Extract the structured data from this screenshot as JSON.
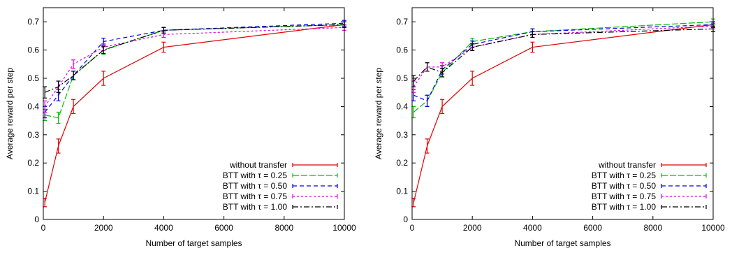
{
  "chart_data": [
    {
      "type": "line",
      "xlabel": "Number of target samples",
      "ylabel": "Average reward per step",
      "xlim": [
        0,
        10000
      ],
      "ylim": [
        0,
        0.75
      ],
      "xticks": [
        0,
        2000,
        4000,
        6000,
        8000,
        10000
      ],
      "yticks": [
        0,
        0.1,
        0.2,
        0.3,
        0.4,
        0.5,
        0.6,
        0.7
      ],
      "grid": false,
      "legend_position": "bottom-right",
      "x": [
        50,
        500,
        1000,
        2000,
        4000,
        10000
      ],
      "series": [
        {
          "name": "without transfer",
          "color": "#e00000",
          "dash": "solid",
          "values": [
            0.06,
            0.26,
            0.4,
            0.5,
            0.61,
            0.69
          ],
          "errors": [
            0.015,
            0.025,
            0.025,
            0.025,
            0.018,
            0.01
          ]
        },
        {
          "name": "BTT with τ = 0.25",
          "color": "#00c000",
          "dash": "longdash",
          "values": [
            0.37,
            0.36,
            0.51,
            0.6,
            0.67,
            0.69
          ],
          "errors": [
            0.02,
            0.02,
            0.015,
            0.015,
            0.01,
            0.01
          ]
        },
        {
          "name": "BTT with τ = 0.50",
          "color": "#0000e0",
          "dash": "dash",
          "values": [
            0.38,
            0.44,
            0.51,
            0.63,
            0.67,
            0.695
          ],
          "errors": [
            0.02,
            0.02,
            0.015,
            0.012,
            0.01,
            0.01
          ]
        },
        {
          "name": "BTT with τ = 0.75",
          "color": "#e000e0",
          "dash": "shortdash",
          "values": [
            0.4,
            0.47,
            0.55,
            0.61,
            0.655,
            0.68
          ],
          "errors": [
            0.02,
            0.02,
            0.015,
            0.012,
            0.01,
            0.01
          ]
        },
        {
          "name": "BTT with τ = 1.00",
          "color": "#000000",
          "dash": "dashdot",
          "values": [
            0.45,
            0.47,
            0.51,
            0.6,
            0.67,
            0.69
          ],
          "errors": [
            0.02,
            0.02,
            0.015,
            0.012,
            0.01,
            0.01
          ]
        }
      ]
    },
    {
      "type": "line",
      "xlabel": "Number of target samples",
      "ylabel": "Average reward per step",
      "xlim": [
        0,
        10000
      ],
      "ylim": [
        0,
        0.75
      ],
      "xticks": [
        0,
        2000,
        4000,
        6000,
        8000,
        10000
      ],
      "yticks": [
        0,
        0.1,
        0.2,
        0.3,
        0.4,
        0.5,
        0.6,
        0.7
      ],
      "grid": false,
      "legend_position": "bottom-right",
      "x": [
        50,
        500,
        1000,
        2000,
        4000,
        10000
      ],
      "series": [
        {
          "name": "without transfer",
          "color": "#e00000",
          "dash": "solid",
          "values": [
            0.06,
            0.26,
            0.4,
            0.5,
            0.61,
            0.69
          ],
          "errors": [
            0.015,
            0.025,
            0.025,
            0.025,
            0.018,
            0.01
          ]
        },
        {
          "name": "BTT with τ = 0.25",
          "color": "#00c000",
          "dash": "longdash",
          "values": [
            0.38,
            0.42,
            0.52,
            0.63,
            0.665,
            0.7
          ],
          "errors": [
            0.02,
            0.02,
            0.015,
            0.012,
            0.01,
            0.01
          ]
        },
        {
          "name": "BTT with τ = 0.50",
          "color": "#0000e0",
          "dash": "dash",
          "values": [
            0.44,
            0.42,
            0.53,
            0.62,
            0.665,
            0.69
          ],
          "errors": [
            0.02,
            0.02,
            0.015,
            0.012,
            0.01,
            0.01
          ]
        },
        {
          "name": "BTT with τ = 0.75",
          "color": "#e000e0",
          "dash": "shortdash",
          "values": [
            0.47,
            0.54,
            0.54,
            0.61,
            0.655,
            0.685
          ],
          "errors": [
            0.02,
            0.015,
            0.015,
            0.012,
            0.01,
            0.01
          ]
        },
        {
          "name": "BTT with τ = 1.00",
          "color": "#000000",
          "dash": "dashdot",
          "values": [
            0.49,
            0.54,
            0.52,
            0.61,
            0.655,
            0.675
          ],
          "errors": [
            0.02,
            0.015,
            0.015,
            0.012,
            0.01,
            0.01
          ]
        }
      ]
    }
  ]
}
